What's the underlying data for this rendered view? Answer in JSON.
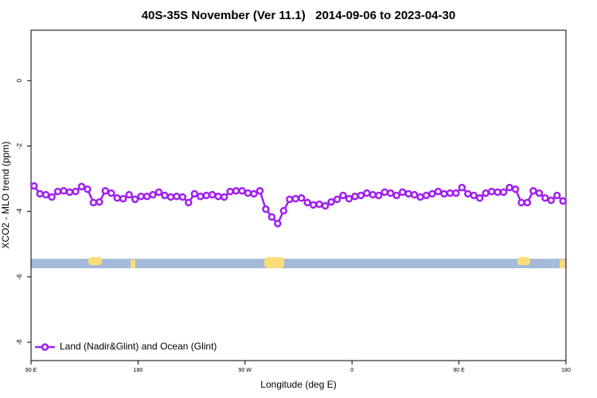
{
  "chart_data": {
    "type": "line",
    "title": "40S-35S November (Ver 11.1)   2014-09-06 to 2023-04-30",
    "x_label": "Longitude (deg E)",
    "y_label": "XCO2 - MLO trend (ppm)",
    "xlim": [
      90,
      540
    ],
    "xticks": [
      {
        "value": 90,
        "label": "90 E"
      },
      180,
      {
        "value": 270,
        "label": "90 W"
      },
      {
        "value": 360,
        "label": "0"
      },
      {
        "value": 450,
        "label": "90 E"
      },
      {
        "value": 540,
        "label": "180"
      }
    ],
    "ylim": [
      -8.56,
      1.54
    ],
    "yticks": [
      0,
      -2,
      -4,
      -6,
      -8
    ],
    "legend": "bottom-left",
    "x": [
      92.5,
      97.5,
      102.5,
      107.5,
      112.5,
      117.5,
      122.5,
      127.5,
      132.5,
      137.5,
      142.5,
      147.5,
      152.5,
      157.5,
      162.5,
      167.5,
      172.5,
      177.5,
      182.5,
      187.5,
      192.5,
      197.5,
      202.5,
      207.5,
      212.5,
      217.5,
      222.5,
      227.5,
      232.5,
      237.5,
      242.5,
      247.5,
      252.5,
      257.5,
      262.5,
      267.5,
      272.5,
      277.5,
      282.5,
      287.5,
      292.5,
      297.5,
      302.5,
      307.5,
      312.5,
      317.5,
      322.5,
      327.5,
      332.5,
      337.5,
      342.5,
      347.5,
      352.5,
      357.5,
      362.5,
      367.5,
      372.5,
      377.5,
      382.5,
      387.5,
      392.5,
      397.5,
      402.5,
      407.5,
      412.5,
      417.5,
      422.5,
      427.5,
      432.5,
      437.5,
      442.5,
      447.5,
      452.5,
      457.5,
      462.5,
      467.5,
      472.5,
      477.5,
      482.5,
      487.5,
      492.5,
      497.5,
      502.5,
      507.5,
      512.5,
      517.5,
      522.5,
      527.5,
      532.5,
      537.5
    ],
    "series": [
      {
        "name": "Land (Nadir&Glint) and Ocean (Glint)",
        "color": "#a020f0",
        "values": [
          -3.22,
          -3.46,
          -3.49,
          -3.56,
          -3.39,
          -3.37,
          -3.41,
          -3.39,
          -3.24,
          -3.32,
          -3.73,
          -3.71,
          -3.37,
          -3.44,
          -3.59,
          -3.61,
          -3.49,
          -3.63,
          -3.54,
          -3.54,
          -3.49,
          -3.41,
          -3.51,
          -3.56,
          -3.54,
          -3.56,
          -3.73,
          -3.46,
          -3.54,
          -3.51,
          -3.49,
          -3.54,
          -3.56,
          -3.39,
          -3.37,
          -3.37,
          -3.44,
          -3.46,
          -3.37,
          -3.93,
          -4.17,
          -4.37,
          -3.98,
          -3.63,
          -3.61,
          -3.59,
          -3.73,
          -3.8,
          -3.78,
          -3.83,
          -3.71,
          -3.63,
          -3.51,
          -3.61,
          -3.54,
          -3.51,
          -3.44,
          -3.49,
          -3.51,
          -3.41,
          -3.44,
          -3.51,
          -3.41,
          -3.46,
          -3.49,
          -3.56,
          -3.51,
          -3.46,
          -3.39,
          -3.46,
          -3.44,
          -3.44,
          -3.27,
          -3.46,
          -3.51,
          -3.59,
          -3.44,
          -3.39,
          -3.41,
          -3.41,
          -3.27,
          -3.32,
          -3.73,
          -3.73,
          -3.37,
          -3.44,
          -3.59,
          -3.66,
          -3.51,
          -3.68
        ]
      }
    ]
  }
}
